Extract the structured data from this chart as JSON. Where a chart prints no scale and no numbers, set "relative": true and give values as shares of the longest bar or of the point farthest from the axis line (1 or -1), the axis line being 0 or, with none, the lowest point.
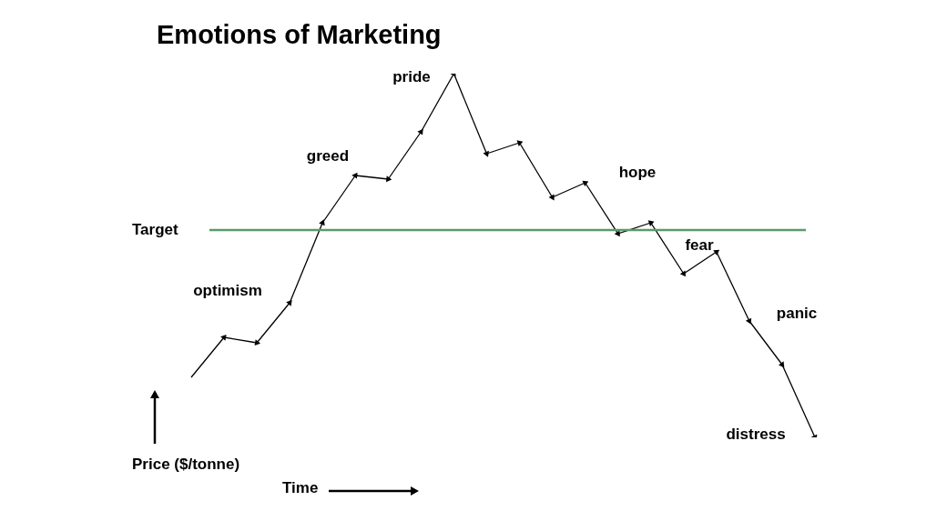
{
  "chart_data": {
    "type": "line",
    "title": "Emotions of Marketing",
    "xlabel": "Time",
    "ylabel": "Price ($/tonne)",
    "relative": true,
    "categories": [
      null,
      null,
      null,
      null,
      null,
      null,
      null,
      null,
      null,
      null,
      null,
      null,
      null,
      null,
      null,
      null,
      null,
      null,
      null,
      null
    ],
    "series": [
      {
        "color": "#000000",
        "values": [
          0.165,
          0.275,
          0.26,
          0.37,
          0.59,
          0.72,
          0.71,
          0.84,
          1,
          0.78,
          0.81,
          0.66,
          0.7,
          0.56,
          0.59,
          0.45,
          0.51,
          0.32,
          0.2,
          0
        ]
      }
    ],
    "ref_lines": [
      {
        "axis": "y",
        "value": 0.57,
        "label": "Target",
        "color": "#5a9a6a"
      }
    ],
    "annotations": [
      "optimism",
      "greed",
      "pride",
      "hope",
      "fear",
      "panic",
      "distress"
    ],
    "legend": false,
    "marker": "triangle",
    "line_style": "solid"
  }
}
